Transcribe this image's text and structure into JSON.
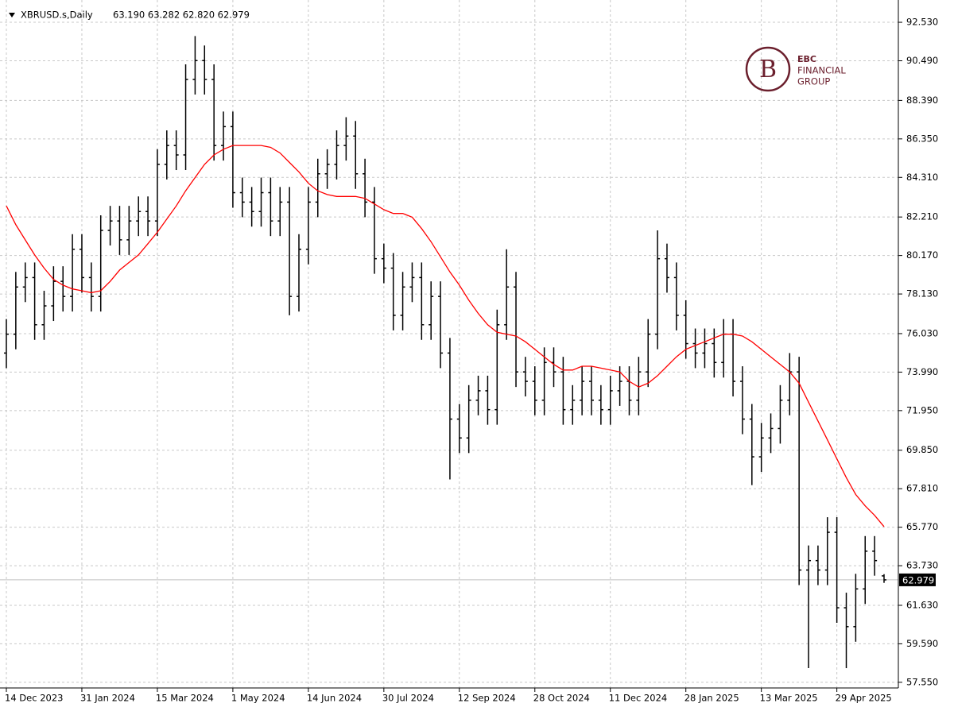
{
  "chart_data": {
    "type": "ohlc",
    "title": "XBRUSD.s,Daily",
    "info": "63.190 63.282 62.820 62.979",
    "logo": {
      "lines": [
        "EBC",
        "FINANCIAL",
        "GROUP"
      ],
      "color": "#6b1f2d"
    },
    "bar_color": "#000000",
    "grid": true,
    "categories": [
      "14 Dec 2023",
      null,
      null,
      null,
      null,
      null,
      null,
      null,
      "31 Jan 2024",
      null,
      null,
      null,
      null,
      null,
      null,
      null,
      "15 Mar 2024",
      null,
      null,
      null,
      null,
      null,
      null,
      null,
      "1 May 2024",
      null,
      null,
      null,
      null,
      null,
      null,
      null,
      "14 Jun 2024",
      null,
      null,
      null,
      null,
      null,
      null,
      null,
      "30 Jul 2024",
      null,
      null,
      null,
      null,
      null,
      null,
      null,
      "12 Sep 2024",
      null,
      null,
      null,
      null,
      null,
      null,
      null,
      "28 Oct 2024",
      null,
      null,
      null,
      null,
      null,
      null,
      null,
      "11 Dec 2024",
      null,
      null,
      null,
      null,
      null,
      null,
      null,
      "28 Jan 2025",
      null,
      null,
      null,
      null,
      null,
      null,
      null,
      "13 Mar 2025",
      null,
      null,
      null,
      null,
      null,
      null,
      null,
      "29 Apr 2025",
      null,
      null,
      null,
      null,
      null
    ],
    "open": [
      75.0,
      76.0,
      78.5,
      79.0,
      76.5,
      77.5,
      78.8,
      78.0,
      80.5,
      79.0,
      78.0,
      81.5,
      82.0,
      81.0,
      82.0,
      82.5,
      82.0,
      85.0,
      86.0,
      85.5,
      89.5,
      90.5,
      89.5,
      86.0,
      87.0,
      83.5,
      83.0,
      82.5,
      83.5,
      82.0,
      83.0,
      78.0,
      80.5,
      83.0,
      84.5,
      85.0,
      86.0,
      86.5,
      84.5,
      83.0,
      80.0,
      79.5,
      77.0,
      78.5,
      79.0,
      76.5,
      78.0,
      75.0,
      71.5,
      70.5,
      72.5,
      73.0,
      72.0,
      76.5,
      78.5,
      74.0,
      73.5,
      72.5,
      74.5,
      74.0,
      72.0,
      72.5,
      73.5,
      72.5,
      72.0,
      73.0,
      73.5,
      72.5,
      74.0,
      76.0,
      80.0,
      79.0,
      77.0,
      75.5,
      75.0,
      75.5,
      74.5,
      76.0,
      73.5,
      71.5,
      69.5,
      70.5,
      71.0,
      72.5,
      74.0,
      63.5,
      64.0,
      63.5,
      65.5,
      61.5,
      60.5,
      62.5,
      64.5,
      63.19
    ],
    "high": [
      76.8,
      79.3,
      79.8,
      79.8,
      78.3,
      79.6,
      79.6,
      81.3,
      81.3,
      79.8,
      82.3,
      82.8,
      82.8,
      82.8,
      83.3,
      83.3,
      85.8,
      86.8,
      86.8,
      90.3,
      91.8,
      91.3,
      90.3,
      87.8,
      87.8,
      84.3,
      83.8,
      84.3,
      84.3,
      83.8,
      83.8,
      81.3,
      83.8,
      85.3,
      85.8,
      86.8,
      87.5,
      87.3,
      85.3,
      83.8,
      80.8,
      80.3,
      79.3,
      79.8,
      79.8,
      78.8,
      78.8,
      75.8,
      72.3,
      73.3,
      73.8,
      73.8,
      77.3,
      80.5,
      79.3,
      74.8,
      74.3,
      75.3,
      75.3,
      74.8,
      73.3,
      74.3,
      74.3,
      73.3,
      73.8,
      74.3,
      74.3,
      74.8,
      76.8,
      81.5,
      80.8,
      79.8,
      77.8,
      76.3,
      76.3,
      76.3,
      76.8,
      76.8,
      74.3,
      72.3,
      71.3,
      71.8,
      73.3,
      75.0,
      74.8,
      64.8,
      64.8,
      66.3,
      66.3,
      62.3,
      63.3,
      65.3,
      65.3,
      63.282
    ],
    "low": [
      74.2,
      75.2,
      77.7,
      75.7,
      75.7,
      76.7,
      77.2,
      77.2,
      78.2,
      77.2,
      77.2,
      80.7,
      80.2,
      80.2,
      81.2,
      81.2,
      81.2,
      84.2,
      84.7,
      84.7,
      88.7,
      88.7,
      85.2,
      85.2,
      82.7,
      82.2,
      81.7,
      81.7,
      81.2,
      81.2,
      77.0,
      77.2,
      79.7,
      82.2,
      83.7,
      84.2,
      85.2,
      83.7,
      82.2,
      79.2,
      78.7,
      76.2,
      76.2,
      77.7,
      75.7,
      75.7,
      74.2,
      68.3,
      69.7,
      69.7,
      71.7,
      71.2,
      71.2,
      75.7,
      73.2,
      72.7,
      71.7,
      71.7,
      73.2,
      71.2,
      71.2,
      71.7,
      71.7,
      71.2,
      71.2,
      72.2,
      71.7,
      71.7,
      73.2,
      75.2,
      78.2,
      76.2,
      74.7,
      74.2,
      74.2,
      73.7,
      73.7,
      72.7,
      70.7,
      68.0,
      68.7,
      69.7,
      70.2,
      71.7,
      62.7,
      58.3,
      62.7,
      62.7,
      60.7,
      58.3,
      59.7,
      61.7,
      63.2,
      62.82
    ],
    "close": [
      76.0,
      78.5,
      79.0,
      76.5,
      77.5,
      78.8,
      78.0,
      80.5,
      79.0,
      78.0,
      81.5,
      82.0,
      81.0,
      82.0,
      82.5,
      82.0,
      85.0,
      86.0,
      85.5,
      89.5,
      90.5,
      89.5,
      86.0,
      87.0,
      83.5,
      83.0,
      82.5,
      83.5,
      82.0,
      83.0,
      78.0,
      80.5,
      83.0,
      84.5,
      85.0,
      86.0,
      86.5,
      84.5,
      83.0,
      80.0,
      79.5,
      77.0,
      78.5,
      79.0,
      76.5,
      78.0,
      75.0,
      71.5,
      70.5,
      72.5,
      73.0,
      72.0,
      76.5,
      78.5,
      74.0,
      73.5,
      72.5,
      74.5,
      74.0,
      72.0,
      72.5,
      73.5,
      72.5,
      72.0,
      73.0,
      73.5,
      72.5,
      74.0,
      76.0,
      80.0,
      79.0,
      77.0,
      75.5,
      75.0,
      75.5,
      74.5,
      76.0,
      73.5,
      71.5,
      69.5,
      70.5,
      71.0,
      72.5,
      74.0,
      63.5,
      64.0,
      63.5,
      65.5,
      61.5,
      60.5,
      62.5,
      64.5,
      64.0,
      62.979
    ],
    "moving_average": {
      "color": "#ff0000",
      "values": [
        82.8,
        81.8,
        81.0,
        80.2,
        79.5,
        78.9,
        78.6,
        78.4,
        78.3,
        78.2,
        78.3,
        78.8,
        79.4,
        79.8,
        80.2,
        80.8,
        81.4,
        82.1,
        82.8,
        83.6,
        84.3,
        85.0,
        85.5,
        85.8,
        86.0,
        86.0,
        86.0,
        86.0,
        85.9,
        85.6,
        85.1,
        84.6,
        84.0,
        83.6,
        83.4,
        83.3,
        83.3,
        83.3,
        83.2,
        82.9,
        82.6,
        82.4,
        82.4,
        82.2,
        81.6,
        80.9,
        80.1,
        79.3,
        78.6,
        77.8,
        77.1,
        76.5,
        76.1,
        76.0,
        75.9,
        75.6,
        75.2,
        74.8,
        74.4,
        74.1,
        74.1,
        74.3,
        74.3,
        74.2,
        74.1,
        74.0,
        73.5,
        73.2,
        73.4,
        73.8,
        74.3,
        74.8,
        75.2,
        75.4,
        75.6,
        75.8,
        76.0,
        76.0,
        75.9,
        75.6,
        75.2,
        74.8,
        74.4,
        74.0,
        73.4,
        72.4,
        71.4,
        70.4,
        69.4,
        68.4,
        67.5,
        66.9,
        66.4,
        65.8
      ]
    },
    "last_price": {
      "value": 62.979,
      "label": "62.979"
    },
    "ylim": [
      57.25,
      93.29
    ],
    "yticks": [
      {
        "value": 57.55,
        "label": "57.550"
      },
      {
        "value": 59.59,
        "label": "59.590"
      },
      {
        "value": 61.63,
        "label": "61.630"
      },
      {
        "value": 63.73,
        "label": "63.730"
      },
      {
        "value": 65.77,
        "label": "65.770"
      },
      {
        "value": 67.81,
        "label": "67.810"
      },
      {
        "value": 69.85,
        "label": "69.850"
      },
      {
        "value": 71.95,
        "label": "71.950"
      },
      {
        "value": 73.99,
        "label": "73.990"
      },
      {
        "value": 76.03,
        "label": "76.030"
      },
      {
        "value": 78.13,
        "label": "78.130"
      },
      {
        "value": 80.17,
        "label": "80.170"
      },
      {
        "value": 82.21,
        "label": "82.210"
      },
      {
        "value": 84.31,
        "label": "84.310"
      },
      {
        "value": 86.35,
        "label": "86.350"
      },
      {
        "value": 88.39,
        "label": "88.390"
      },
      {
        "value": 90.49,
        "label": "90.490"
      },
      {
        "value": 92.53,
        "label": "92.530"
      }
    ]
  }
}
